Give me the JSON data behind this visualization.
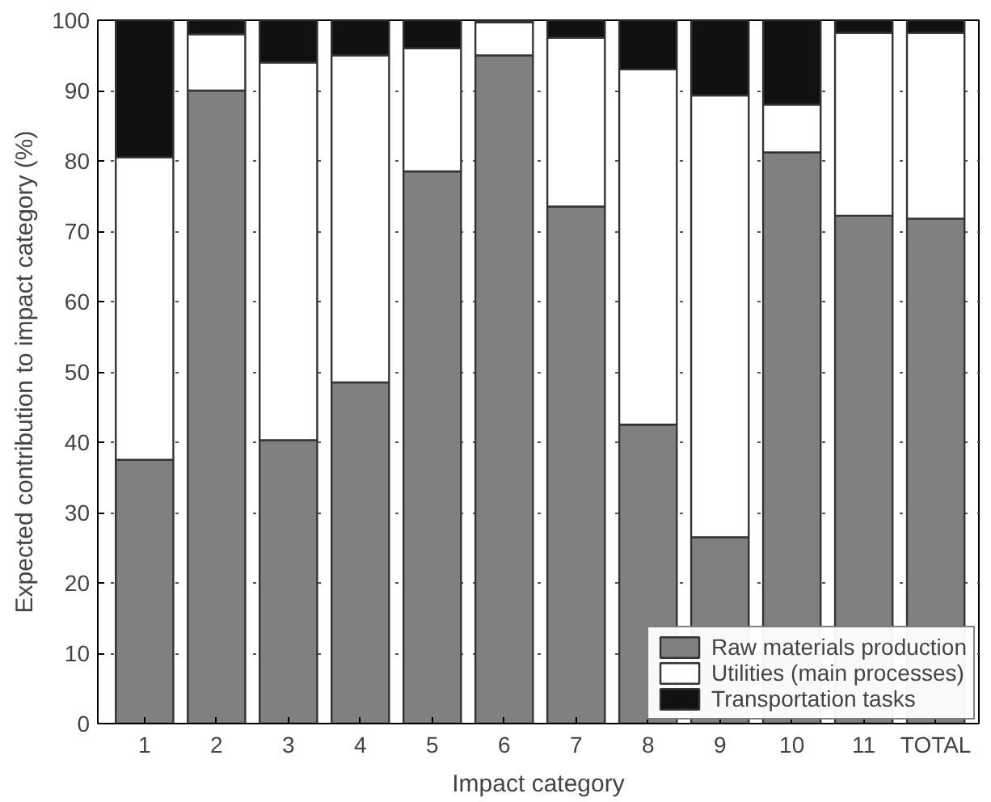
{
  "chart_data": {
    "type": "bar",
    "stacked": true,
    "xlabel": "Impact category",
    "ylabel": "Expected contribution to impact category (%)",
    "categories": [
      "1",
      "2",
      "3",
      "4",
      "5",
      "6",
      "7",
      "8",
      "9",
      "10",
      "11",
      "TOTAL"
    ],
    "series": [
      {
        "name": "Raw materials production",
        "color": "#808080",
        "values": [
          37.5,
          90,
          40.3,
          48.5,
          78.5,
          95,
          73.5,
          42.5,
          26.5,
          81.2,
          72.2,
          71.8
        ]
      },
      {
        "name": "Utilities (main processes)",
        "color": "#ffffff",
        "values": [
          43,
          8,
          53.7,
          46.5,
          17.5,
          4.7,
          24,
          50.5,
          62.8,
          6.8,
          26,
          26.4
        ]
      },
      {
        "name": "Transportation tasks",
        "color": "#111111",
        "values": [
          19.5,
          2,
          6,
          5,
          4,
          0.3,
          2.5,
          7,
          10.7,
          12,
          1.8,
          1.8
        ]
      }
    ],
    "ylim": [
      0,
      100
    ],
    "yticks": [
      0,
      10,
      20,
      30,
      40,
      50,
      60,
      70,
      80,
      90,
      100
    ],
    "grid": "y",
    "legend": "bottom right"
  }
}
